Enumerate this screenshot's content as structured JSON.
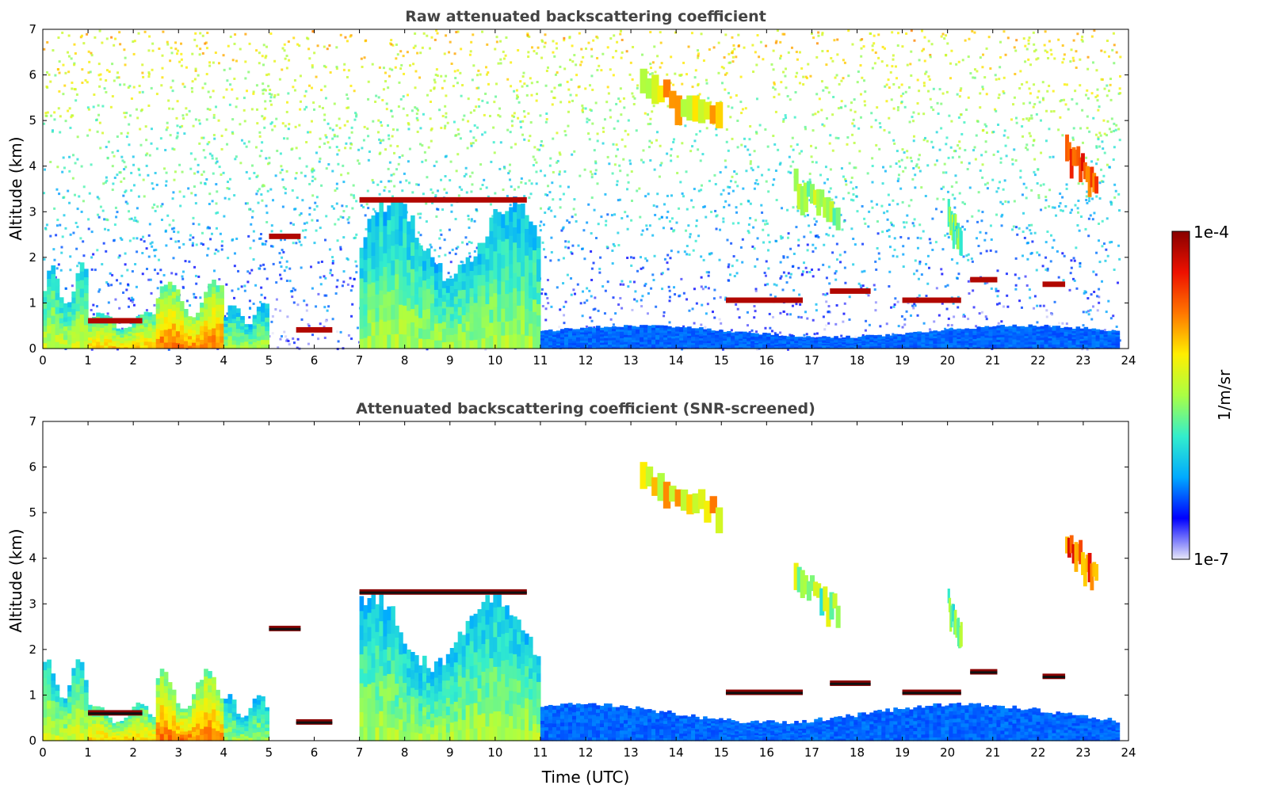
{
  "chart_data": [
    {
      "type": "heatmap",
      "title": "Raw attenuated backscattering coefficient",
      "xlabel": "",
      "ylabel": "Altitude (km)",
      "xlim": [
        0,
        24
      ],
      "ylim": [
        0,
        7
      ],
      "xticks": [
        "0",
        "1",
        "2",
        "3",
        "4",
        "5",
        "6",
        "7",
        "8",
        "9",
        "10",
        "11",
        "12",
        "13",
        "14",
        "15",
        "16",
        "17",
        "18",
        "19",
        "20",
        "21",
        "22",
        "23",
        "24"
      ],
      "yticks": [
        "0",
        "1",
        "2",
        "3",
        "4",
        "5",
        "6",
        "7"
      ],
      "noise_background": true,
      "features": [
        {
          "kind": "boundary_layer",
          "t0": 0.0,
          "t1": 1.0,
          "alt": 1.8,
          "level": 0.55
        },
        {
          "kind": "boundary_layer",
          "t0": 1.0,
          "t1": 2.5,
          "alt": 0.8,
          "level": 0.65
        },
        {
          "kind": "boundary_layer",
          "t0": 2.5,
          "t1": 4.0,
          "alt": 1.5,
          "level": 0.75
        },
        {
          "kind": "boundary_layer",
          "t0": 4.0,
          "t1": 5.0,
          "alt": 1.0,
          "level": 0.5
        },
        {
          "kind": "boundary_layer",
          "t0": 7.0,
          "t1": 11.0,
          "alt": 3.2,
          "level": 0.5
        },
        {
          "kind": "low_blue",
          "t0": 11.0,
          "t1": 23.8,
          "alt": 0.5,
          "level": 0.2
        },
        {
          "kind": "cloud_layer",
          "t0": 1.0,
          "t1": 2.2,
          "alt": 0.55,
          "level": 0.95
        },
        {
          "kind": "cloud_layer",
          "t0": 5.6,
          "t1": 6.4,
          "alt": 0.35,
          "level": 0.95
        },
        {
          "kind": "cloud_layer",
          "t0": 5.0,
          "t1": 5.7,
          "alt": 2.4,
          "level": 0.95
        },
        {
          "kind": "cloud_layer",
          "t0": 7.0,
          "t1": 10.7,
          "alt": 3.2,
          "level": 0.95
        },
        {
          "kind": "cloud_layer",
          "t0": 15.1,
          "t1": 16.8,
          "alt": 1.0,
          "level": 0.95
        },
        {
          "kind": "cloud_layer",
          "t0": 17.4,
          "t1": 18.3,
          "alt": 1.2,
          "level": 0.95
        },
        {
          "kind": "cloud_layer",
          "t0": 19.0,
          "t1": 20.3,
          "alt": 1.0,
          "level": 0.95
        },
        {
          "kind": "cloud_layer",
          "t0": 20.5,
          "t1": 21.1,
          "alt": 1.45,
          "level": 0.95
        },
        {
          "kind": "cloud_layer",
          "t0": 22.1,
          "t1": 22.6,
          "alt": 1.35,
          "level": 0.95
        },
        {
          "kind": "cirrus",
          "t0": 13.2,
          "t1": 15.0,
          "alt": 6.0,
          "level": 0.75
        },
        {
          "kind": "cirrus",
          "t0": 16.6,
          "t1": 17.6,
          "alt": 3.8,
          "level": 0.6
        },
        {
          "kind": "cirrus",
          "t0": 20.0,
          "t1": 20.3,
          "alt": 3.2,
          "level": 0.55
        },
        {
          "kind": "cirrus",
          "t0": 22.6,
          "t1": 23.3,
          "alt": 4.6,
          "level": 0.9
        }
      ]
    },
    {
      "type": "heatmap",
      "title": "Attenuated backscattering coefficient (SNR-screened)",
      "xlabel": "Time (UTC)",
      "ylabel": "Altitude (km)",
      "xlim": [
        0,
        24
      ],
      "ylim": [
        0,
        7
      ],
      "xticks": [
        "0",
        "1",
        "2",
        "3",
        "4",
        "5",
        "6",
        "7",
        "8",
        "9",
        "10",
        "11",
        "12",
        "13",
        "14",
        "15",
        "16",
        "17",
        "18",
        "19",
        "20",
        "21",
        "22",
        "23",
        "24"
      ],
      "yticks": [
        "0",
        "1",
        "2",
        "3",
        "4",
        "5",
        "6",
        "7"
      ],
      "noise_background": false,
      "features": [
        {
          "kind": "boundary_layer",
          "t0": 0.0,
          "t1": 1.0,
          "alt": 1.8,
          "level": 0.55
        },
        {
          "kind": "boundary_layer",
          "t0": 1.0,
          "t1": 2.5,
          "alt": 0.8,
          "level": 0.65
        },
        {
          "kind": "boundary_layer",
          "t0": 2.5,
          "t1": 4.0,
          "alt": 1.5,
          "level": 0.75
        },
        {
          "kind": "boundary_layer",
          "t0": 4.0,
          "t1": 5.0,
          "alt": 1.0,
          "level": 0.5
        },
        {
          "kind": "boundary_layer",
          "t0": 7.0,
          "t1": 11.0,
          "alt": 3.2,
          "level": 0.5
        },
        {
          "kind": "low_blue",
          "t0": 11.0,
          "t1": 23.8,
          "alt": 0.8,
          "level": 0.2
        },
        {
          "kind": "cloud_layer",
          "t0": 1.0,
          "t1": 2.2,
          "alt": 0.55,
          "level": 1.0
        },
        {
          "kind": "cloud_layer",
          "t0": 5.6,
          "t1": 6.4,
          "alt": 0.35,
          "level": 1.0
        },
        {
          "kind": "cloud_layer",
          "t0": 5.0,
          "t1": 5.7,
          "alt": 2.4,
          "level": 1.0
        },
        {
          "kind": "cloud_layer",
          "t0": 7.0,
          "t1": 10.7,
          "alt": 3.2,
          "level": 1.0
        },
        {
          "kind": "cloud_layer",
          "t0": 15.1,
          "t1": 16.8,
          "alt": 1.0,
          "level": 1.0
        },
        {
          "kind": "cloud_layer",
          "t0": 17.4,
          "t1": 18.3,
          "alt": 1.2,
          "level": 1.0
        },
        {
          "kind": "cloud_layer",
          "t0": 19.0,
          "t1": 20.3,
          "alt": 1.0,
          "level": 1.0
        },
        {
          "kind": "cloud_layer",
          "t0": 20.5,
          "t1": 21.1,
          "alt": 1.45,
          "level": 1.0
        },
        {
          "kind": "cloud_layer",
          "t0": 22.1,
          "t1": 22.6,
          "alt": 1.35,
          "level": 1.0
        },
        {
          "kind": "cirrus",
          "t0": 13.2,
          "t1": 15.0,
          "alt": 6.0,
          "level": 0.75
        },
        {
          "kind": "cirrus",
          "t0": 16.6,
          "t1": 17.6,
          "alt": 3.8,
          "level": 0.6
        },
        {
          "kind": "cirrus",
          "t0": 20.0,
          "t1": 20.3,
          "alt": 3.2,
          "level": 0.55
        },
        {
          "kind": "cirrus",
          "t0": 22.6,
          "t1": 23.3,
          "alt": 4.6,
          "level": 0.9
        }
      ]
    }
  ],
  "colorbar": {
    "label": "1/m/sr",
    "min_label": "1e-7",
    "max_label": "1e-4",
    "colormap": "jet",
    "colors": [
      "#e8e8f8",
      "#0000ff",
      "#00aaff",
      "#33eecc",
      "#aaff44",
      "#ffee00",
      "#ff7700",
      "#ee1100",
      "#880000"
    ]
  }
}
